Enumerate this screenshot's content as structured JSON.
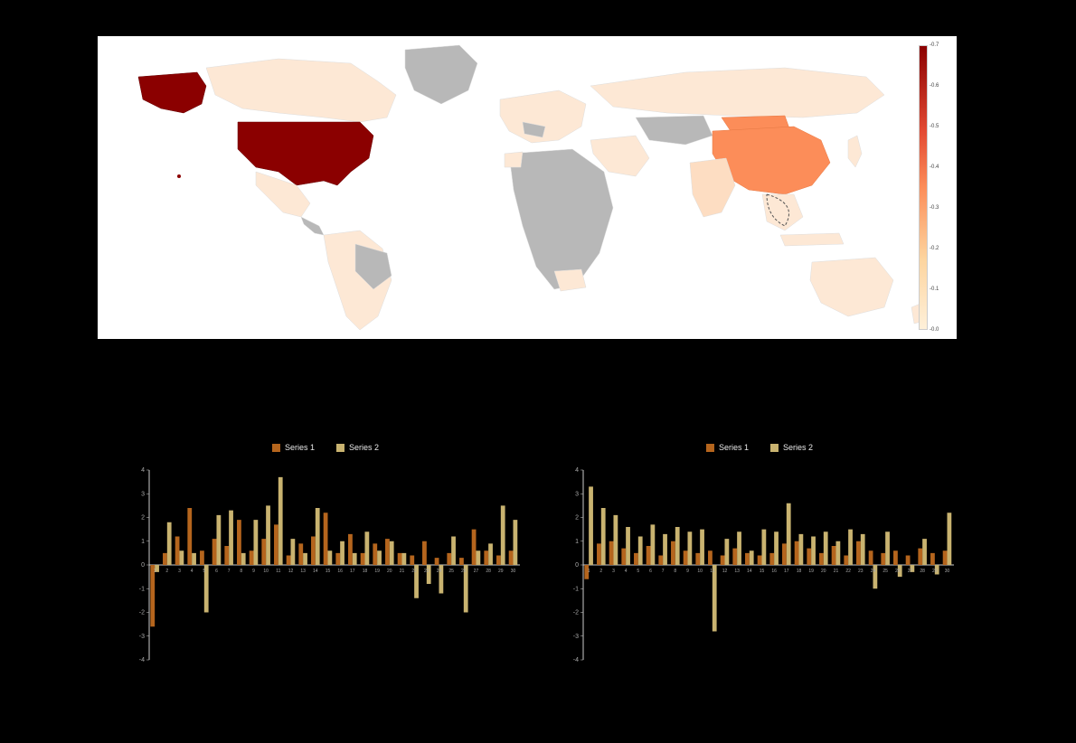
{
  "map": {
    "type": "choropleth",
    "background_color": "#ffffff",
    "landmass_default_color": "#b8b8b8",
    "light_value_color": "#fde8d5",
    "colorbar": {
      "min": 0.0,
      "max": 0.7,
      "ticks": [
        0.0,
        0.1,
        0.2,
        0.3,
        0.4,
        0.5,
        0.6,
        0.7
      ],
      "gradient_stops": [
        "#fef0d9",
        "#fdd49e",
        "#fc8d59",
        "#e34a33",
        "#8b0000"
      ]
    },
    "highlighted_countries": {
      "USA": {
        "value": 0.7,
        "color": "#8b0000"
      },
      "China": {
        "value": 0.35,
        "color": "#fc8d59"
      },
      "Canada": {
        "value": 0.04,
        "color": "#fde8d5"
      },
      "Mexico": {
        "value": 0.03,
        "color": "#fde8d5"
      },
      "Brazil_partial": {
        "value": 0.02,
        "color": "#fde8d5"
      },
      "Russia": {
        "value": 0.04,
        "color": "#fde8d5"
      },
      "India": {
        "value": 0.05,
        "color": "#fdddc2"
      },
      "Japan": {
        "value": 0.04,
        "color": "#fde8d5"
      },
      "Australia": {
        "value": 0.03,
        "color": "#fde8d5"
      },
      "Europe_mixed": {
        "value": 0.03,
        "color": "#fde8d5"
      }
    }
  },
  "chart_a": {
    "type": "grouped_bar",
    "legend": [
      {
        "label": "Series 1",
        "color": "#b5651d"
      },
      {
        "label": "Series 2",
        "color": "#c9b370"
      }
    ],
    "ylim": [
      -4,
      4
    ],
    "ytick_step": 1,
    "bar_width": 0.35,
    "axis_color": "#cccccc",
    "background_color": "#000000",
    "categories": [
      "c1",
      "c2",
      "c3",
      "c4",
      "c5",
      "c6",
      "c7",
      "c8",
      "c9",
      "c10",
      "c11",
      "c12",
      "c13",
      "c14",
      "c15",
      "c16",
      "c17",
      "c18",
      "c19",
      "c20",
      "c21",
      "c22",
      "c23",
      "c24",
      "c25",
      "c26",
      "c27",
      "c28",
      "c29",
      "c30"
    ],
    "series1": [
      -2.6,
      0.5,
      1.2,
      2.4,
      0.6,
      1.1,
      0.8,
      1.9,
      0.6,
      1.1,
      1.7,
      0.4,
      0.9,
      1.2,
      2.2,
      0.5,
      1.3,
      0.5,
      0.9,
      1.1,
      0.5,
      0.4,
      1.0,
      0.3,
      0.5,
      0.3,
      1.5,
      0.6,
      0.4,
      0.6
    ],
    "series2": [
      -0.3,
      1.8,
      0.6,
      0.5,
      -2.0,
      2.1,
      2.3,
      0.5,
      1.9,
      2.5,
      3.7,
      1.1,
      0.5,
      2.4,
      0.6,
      1.0,
      0.5,
      1.4,
      0.6,
      1.0,
      0.5,
      -1.4,
      -0.8,
      -1.2,
      1.2,
      -2.0,
      0.6,
      0.9,
      2.5,
      1.9
    ]
  },
  "chart_b": {
    "type": "grouped_bar",
    "legend": [
      {
        "label": "Series 1",
        "color": "#b5651d"
      },
      {
        "label": "Series 2",
        "color": "#c9b370"
      }
    ],
    "ylim": [
      -4,
      4
    ],
    "ytick_step": 1,
    "bar_width": 0.35,
    "axis_color": "#cccccc",
    "background_color": "#000000",
    "categories": [
      "c1",
      "c2",
      "c3",
      "c4",
      "c5",
      "c6",
      "c7",
      "c8",
      "c9",
      "c10",
      "c11",
      "c12",
      "c13",
      "c14",
      "c15",
      "c16",
      "c17",
      "c18",
      "c19",
      "c20",
      "c21",
      "c22",
      "c23",
      "c24",
      "c25",
      "c26",
      "c27",
      "c28",
      "c29",
      "c30"
    ],
    "series1": [
      -0.6,
      0.9,
      1.0,
      0.7,
      0.5,
      0.8,
      0.4,
      1.0,
      0.6,
      0.5,
      0.6,
      0.4,
      0.7,
      0.5,
      0.4,
      0.5,
      0.9,
      1.0,
      0.7,
      0.5,
      0.8,
      0.4,
      1.0,
      0.6,
      0.5,
      0.6,
      0.4,
      0.7,
      0.5,
      0.6
    ],
    "series2": [
      3.3,
      2.4,
      2.1,
      1.6,
      1.2,
      1.7,
      1.3,
      1.6,
      1.4,
      1.5,
      -2.8,
      1.1,
      1.4,
      0.6,
      1.5,
      1.4,
      2.6,
      1.3,
      1.2,
      1.4,
      1.0,
      1.5,
      1.3,
      -1.0,
      1.4,
      -0.5,
      -0.3,
      1.1,
      -0.4,
      2.2
    ]
  }
}
